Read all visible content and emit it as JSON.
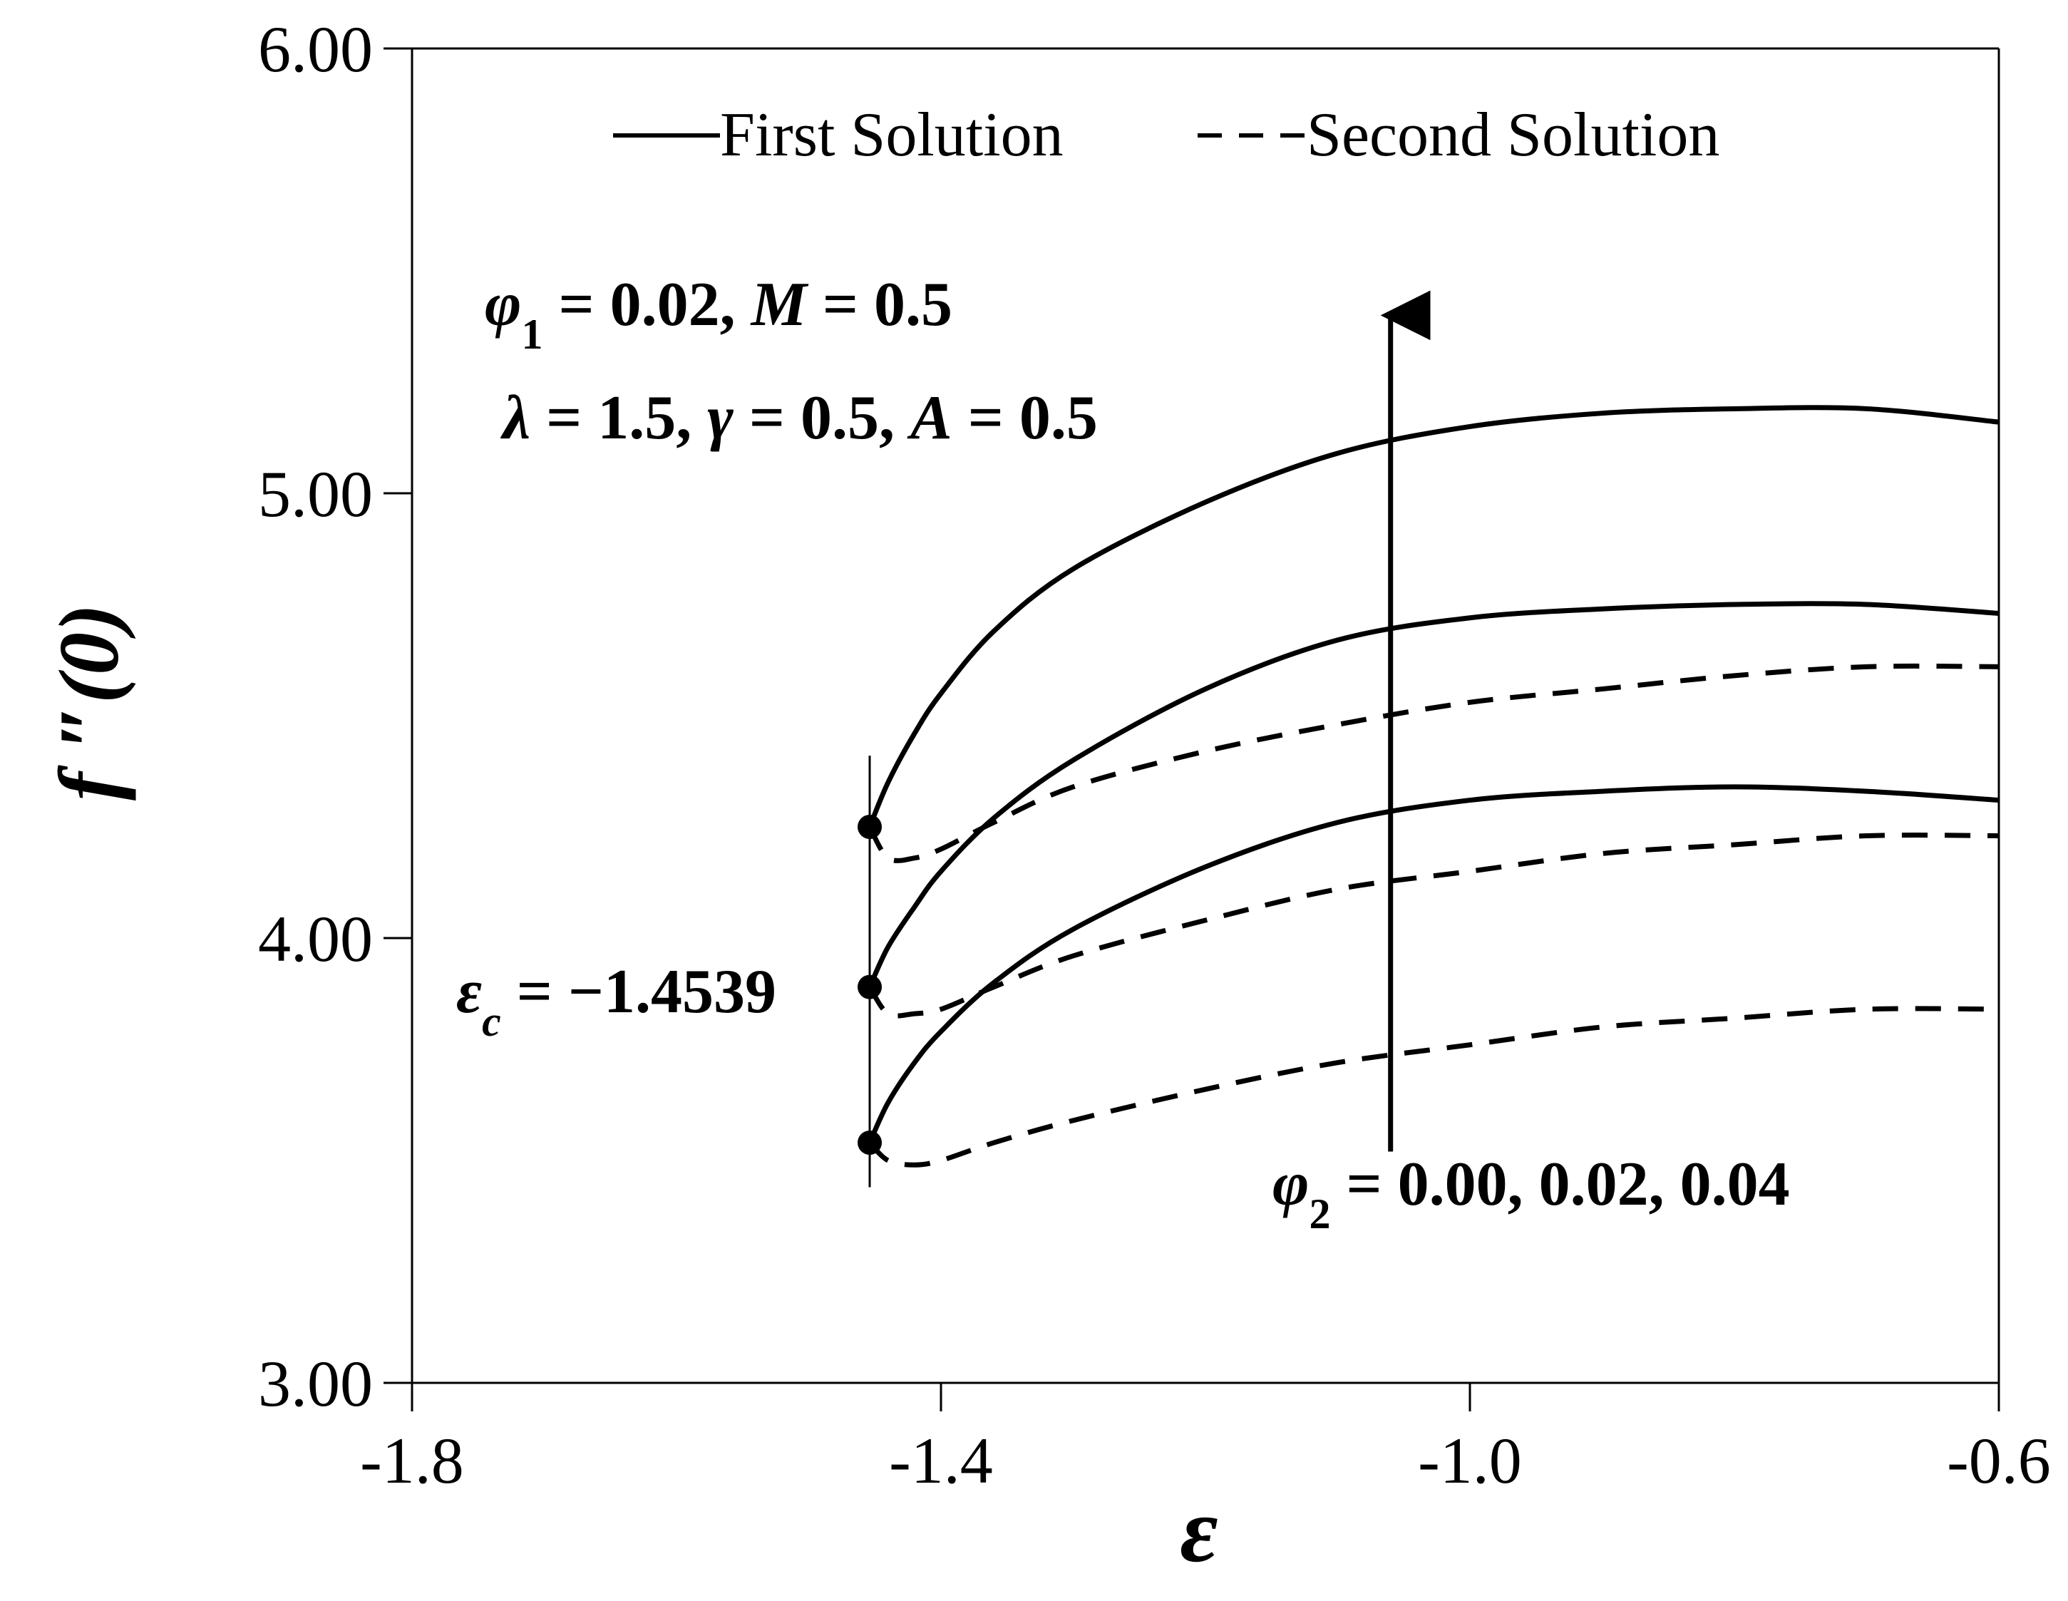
{
  "chart_data": {
    "type": "line",
    "xlabel": "ε",
    "ylabel": "f ″(0)",
    "xlim": [
      -1.8,
      -0.6
    ],
    "ylim": [
      3.0,
      6.0
    ],
    "x_ticks": [
      "-1.8",
      "-1.4",
      "-1.0",
      "-0.6"
    ],
    "y_ticks": [
      "3.00",
      "4.00",
      "5.00",
      "6.00"
    ],
    "grid": false,
    "legend": {
      "placement": "top",
      "items": [
        {
          "label": "First Solution",
          "style": "solid"
        },
        {
          "label": "Second Solution",
          "style": "dashed"
        }
      ]
    },
    "annotations": {
      "params_line1": "φ1 = 0.02, M = 0.5",
      "params_line2": "λ = 1.5, γ = 0.5, A = 0.5",
      "critical": "εc = −1.4539",
      "phi2": "φ2 = 0.00, 0.02, 0.04"
    },
    "critical_x": -1.4539,
    "series": [
      {
        "name": "First Solution",
        "phi2": "0.00",
        "style": "solid",
        "x": [
          -1.4539,
          -1.44,
          -1.42,
          -1.4,
          -1.36,
          -1.3,
          -1.2,
          -1.1,
          -1.0,
          -0.9,
          -0.8,
          -0.7,
          -0.6
        ],
        "y": [
          3.54,
          3.63,
          3.72,
          3.79,
          3.9,
          4.02,
          4.16,
          4.26,
          4.31,
          4.33,
          4.34,
          4.33,
          4.31
        ]
      },
      {
        "name": "Second Solution",
        "phi2": "0.00",
        "style": "dashed",
        "x": [
          -1.4539,
          -1.44,
          -1.42,
          -1.4,
          -1.36,
          -1.3,
          -1.2,
          -1.1,
          -1.0,
          -0.9,
          -0.8,
          -0.7,
          -0.6
        ],
        "y": [
          3.54,
          3.5,
          3.49,
          3.5,
          3.54,
          3.59,
          3.66,
          3.72,
          3.76,
          3.8,
          3.82,
          3.84,
          3.84
        ]
      },
      {
        "name": "First Solution",
        "phi2": "0.02",
        "style": "solid",
        "x": [
          -1.4539,
          -1.44,
          -1.42,
          -1.4,
          -1.36,
          -1.3,
          -1.2,
          -1.1,
          -1.0,
          -0.9,
          -0.8,
          -0.7,
          -0.6
        ],
        "y": [
          3.89,
          3.98,
          4.07,
          4.15,
          4.27,
          4.4,
          4.56,
          4.67,
          4.72,
          4.74,
          4.75,
          4.75,
          4.73
        ]
      },
      {
        "name": "Second Solution",
        "phi2": "0.02",
        "style": "dashed",
        "x": [
          -1.4539,
          -1.44,
          -1.42,
          -1.4,
          -1.36,
          -1.3,
          -1.2,
          -1.1,
          -1.0,
          -0.9,
          -0.8,
          -0.7,
          -0.6
        ],
        "y": [
          3.89,
          3.83,
          3.83,
          3.84,
          3.89,
          3.96,
          4.04,
          4.11,
          4.15,
          4.19,
          4.21,
          4.23,
          4.23
        ]
      },
      {
        "name": "First Solution",
        "phi2": "0.04",
        "style": "solid",
        "x": [
          -1.4539,
          -1.44,
          -1.42,
          -1.4,
          -1.36,
          -1.3,
          -1.2,
          -1.1,
          -1.0,
          -0.9,
          -0.8,
          -0.7,
          -0.6
        ],
        "y": [
          4.25,
          4.35,
          4.46,
          4.55,
          4.69,
          4.83,
          4.98,
          5.09,
          5.15,
          5.18,
          5.19,
          5.19,
          5.16
        ]
      },
      {
        "name": "Second Solution",
        "phi2": "0.04",
        "style": "dashed",
        "x": [
          -1.4539,
          -1.44,
          -1.42,
          -1.4,
          -1.36,
          -1.3,
          -1.2,
          -1.1,
          -1.0,
          -0.9,
          -0.8,
          -0.7,
          -0.6
        ],
        "y": [
          4.25,
          4.18,
          4.18,
          4.2,
          4.26,
          4.34,
          4.42,
          4.48,
          4.53,
          4.56,
          4.59,
          4.61,
          4.61
        ]
      }
    ],
    "arrow": {
      "x": -1.06,
      "y_from": 3.52,
      "y_to": 5.4,
      "meaning": "increasing φ2"
    }
  }
}
